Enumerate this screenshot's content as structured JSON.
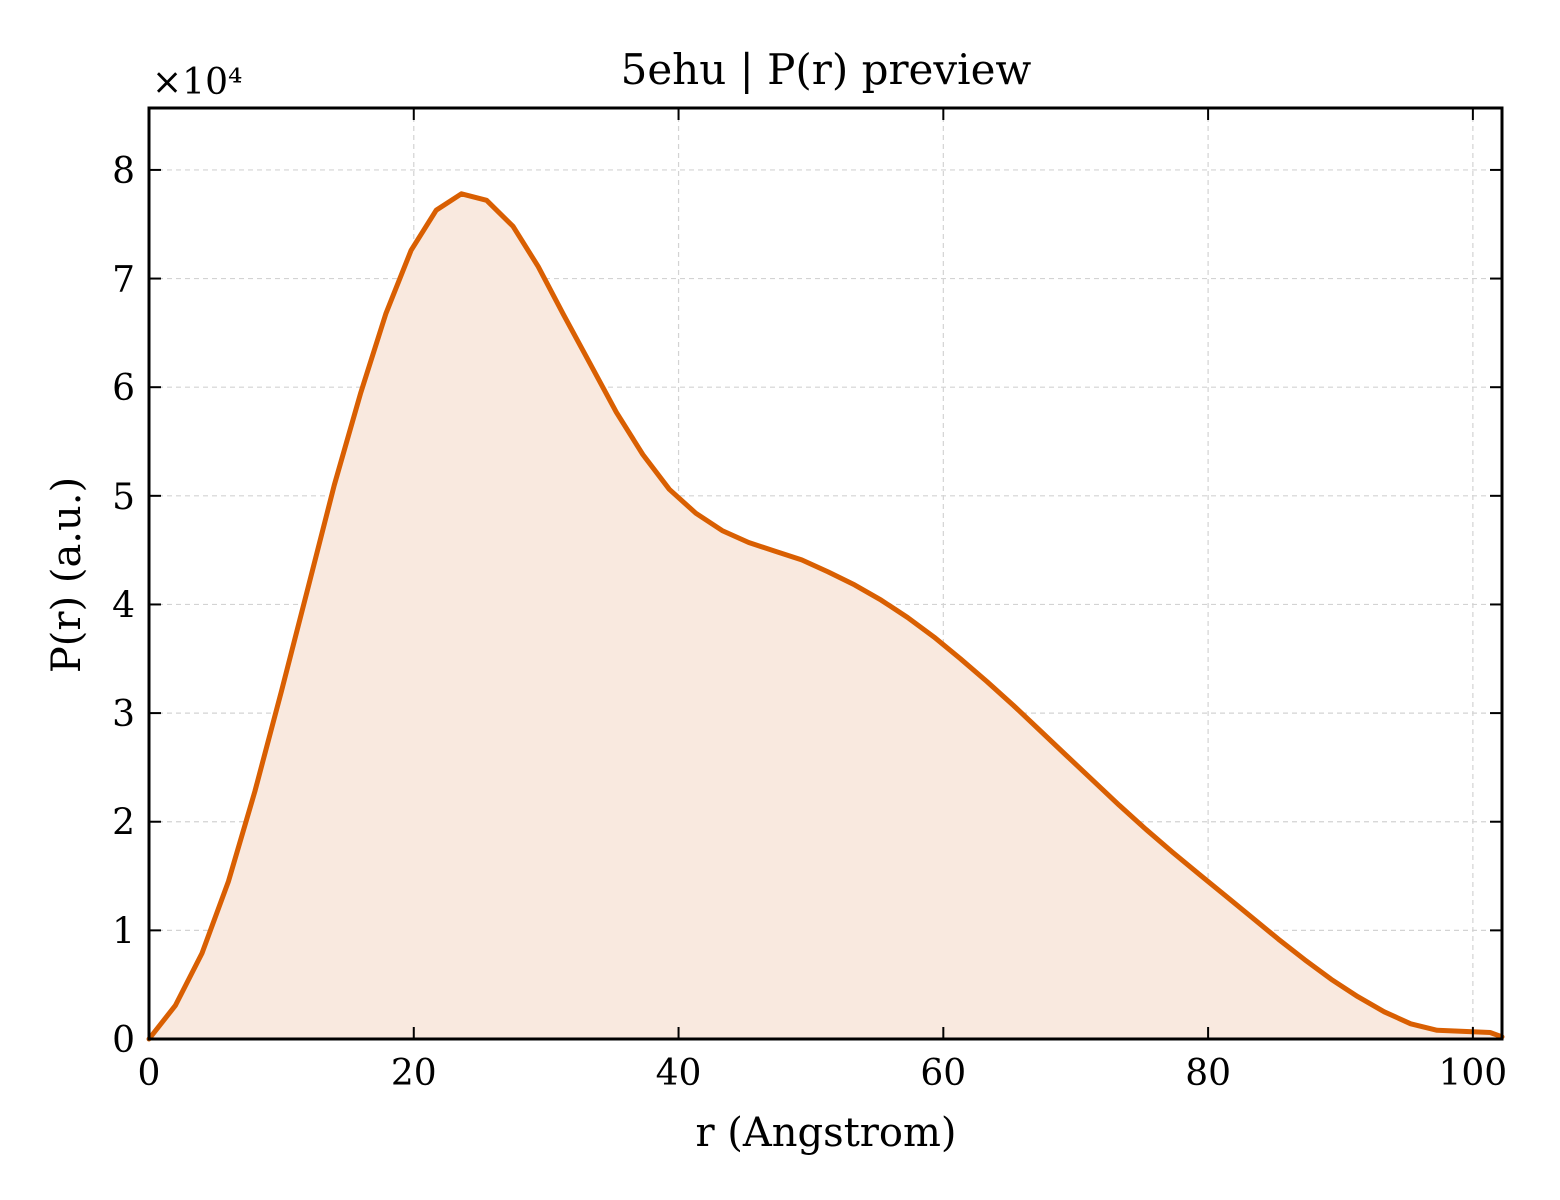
{
  "chart_data": {
    "type": "area",
    "title": "5ehu | P(r) preview",
    "xlabel": "r (Angstrom)",
    "ylabel": "P(r) (a.u.)",
    "y_multiplier_label": "×10⁴",
    "xlim": [
      0,
      102.2
    ],
    "ylim": [
      0,
      8.57
    ],
    "x_ticks": [
      0,
      20,
      40,
      60,
      80,
      100
    ],
    "y_ticks": [
      0,
      1,
      2,
      3,
      4,
      5,
      6,
      7,
      8
    ],
    "grid": true,
    "line_color": "#d95f02",
    "fill_color": "#f9e9df",
    "series": [
      {
        "x": [
          0,
          2,
          4,
          6,
          8,
          10,
          12,
          14,
          16,
          17.9,
          19.8,
          21.7,
          23.6,
          25.5,
          27.5,
          29.4,
          31.3,
          33.3,
          35.3,
          37.3,
          39.3,
          41.3,
          43.3,
          45.3,
          47.3,
          49.3,
          51.3,
          53.3,
          55.3,
          57.3,
          59.3,
          61.3,
          63.3,
          65.3,
          67.3,
          69.3,
          71.3,
          73.3,
          75.3,
          77.3,
          79.3,
          81.3,
          83.3,
          85.3,
          87.3,
          89.3,
          91.3,
          93.3,
          95.3,
          97.3,
          99.3,
          101.3,
          102.2
        ],
        "y": [
          0,
          0.31,
          0.79,
          1.45,
          2.28,
          3.2,
          4.15,
          5.1,
          5.95,
          6.68,
          7.26,
          7.63,
          7.78,
          7.72,
          7.48,
          7.11,
          6.67,
          6.22,
          5.77,
          5.38,
          5.06,
          4.84,
          4.68,
          4.57,
          4.49,
          4.41,
          4.3,
          4.18,
          4.04,
          3.88,
          3.7,
          3.5,
          3.29,
          3.07,
          2.84,
          2.61,
          2.38,
          2.15,
          1.93,
          1.72,
          1.52,
          1.32,
          1.12,
          0.92,
          0.73,
          0.55,
          0.39,
          0.25,
          0.14,
          0.08,
          0.07,
          0.06,
          0.02
        ]
      }
    ]
  }
}
